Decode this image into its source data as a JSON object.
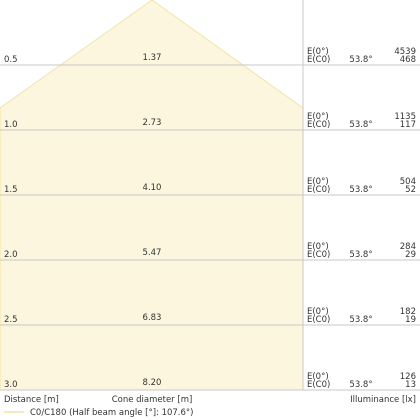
{
  "chart_data": {
    "type": "area",
    "x_label": "Distance [m]",
    "center_label": "Cone diameter [m]",
    "right_label": "Illuminance [lx]",
    "legend": "C0/C180 (Half beam angle [°]: 107.6°)",
    "rows": [
      {
        "distance": "0.5",
        "diameter": "1.37",
        "e0_label": "E(0°)",
        "ec0_label": "E(C0)",
        "angle": "53.8°",
        "e0": "4539",
        "ec0": "468"
      },
      {
        "distance": "1.0",
        "diameter": "2.73",
        "e0_label": "E(0°)",
        "ec0_label": "E(C0)",
        "angle": "53.8°",
        "e0": "1135",
        "ec0": "117"
      },
      {
        "distance": "1.5",
        "diameter": "4.10",
        "e0_label": "E(0°)",
        "ec0_label": "E(C0)",
        "angle": "53.8°",
        "e0": "504",
        "ec0": "52"
      },
      {
        "distance": "2.0",
        "diameter": "5.47",
        "e0_label": "E(0°)",
        "ec0_label": "E(C0)",
        "angle": "53.8°",
        "e0": "284",
        "ec0": "29"
      },
      {
        "distance": "2.5",
        "diameter": "6.83",
        "e0_label": "E(0°)",
        "ec0_label": "E(C0)",
        "angle": "53.8°",
        "e0": "182",
        "ec0": "19"
      },
      {
        "distance": "3.0",
        "diameter": "8.20",
        "e0_label": "E(0°)",
        "ec0_label": "E(C0)",
        "angle": "53.8°",
        "e0": "126",
        "ec0": "13"
      }
    ],
    "colors": {
      "cone_fill": "#fbf6dd",
      "cone_stroke": "#f3e3a8",
      "grid": "#c8c8c8",
      "text": "#333333"
    }
  }
}
